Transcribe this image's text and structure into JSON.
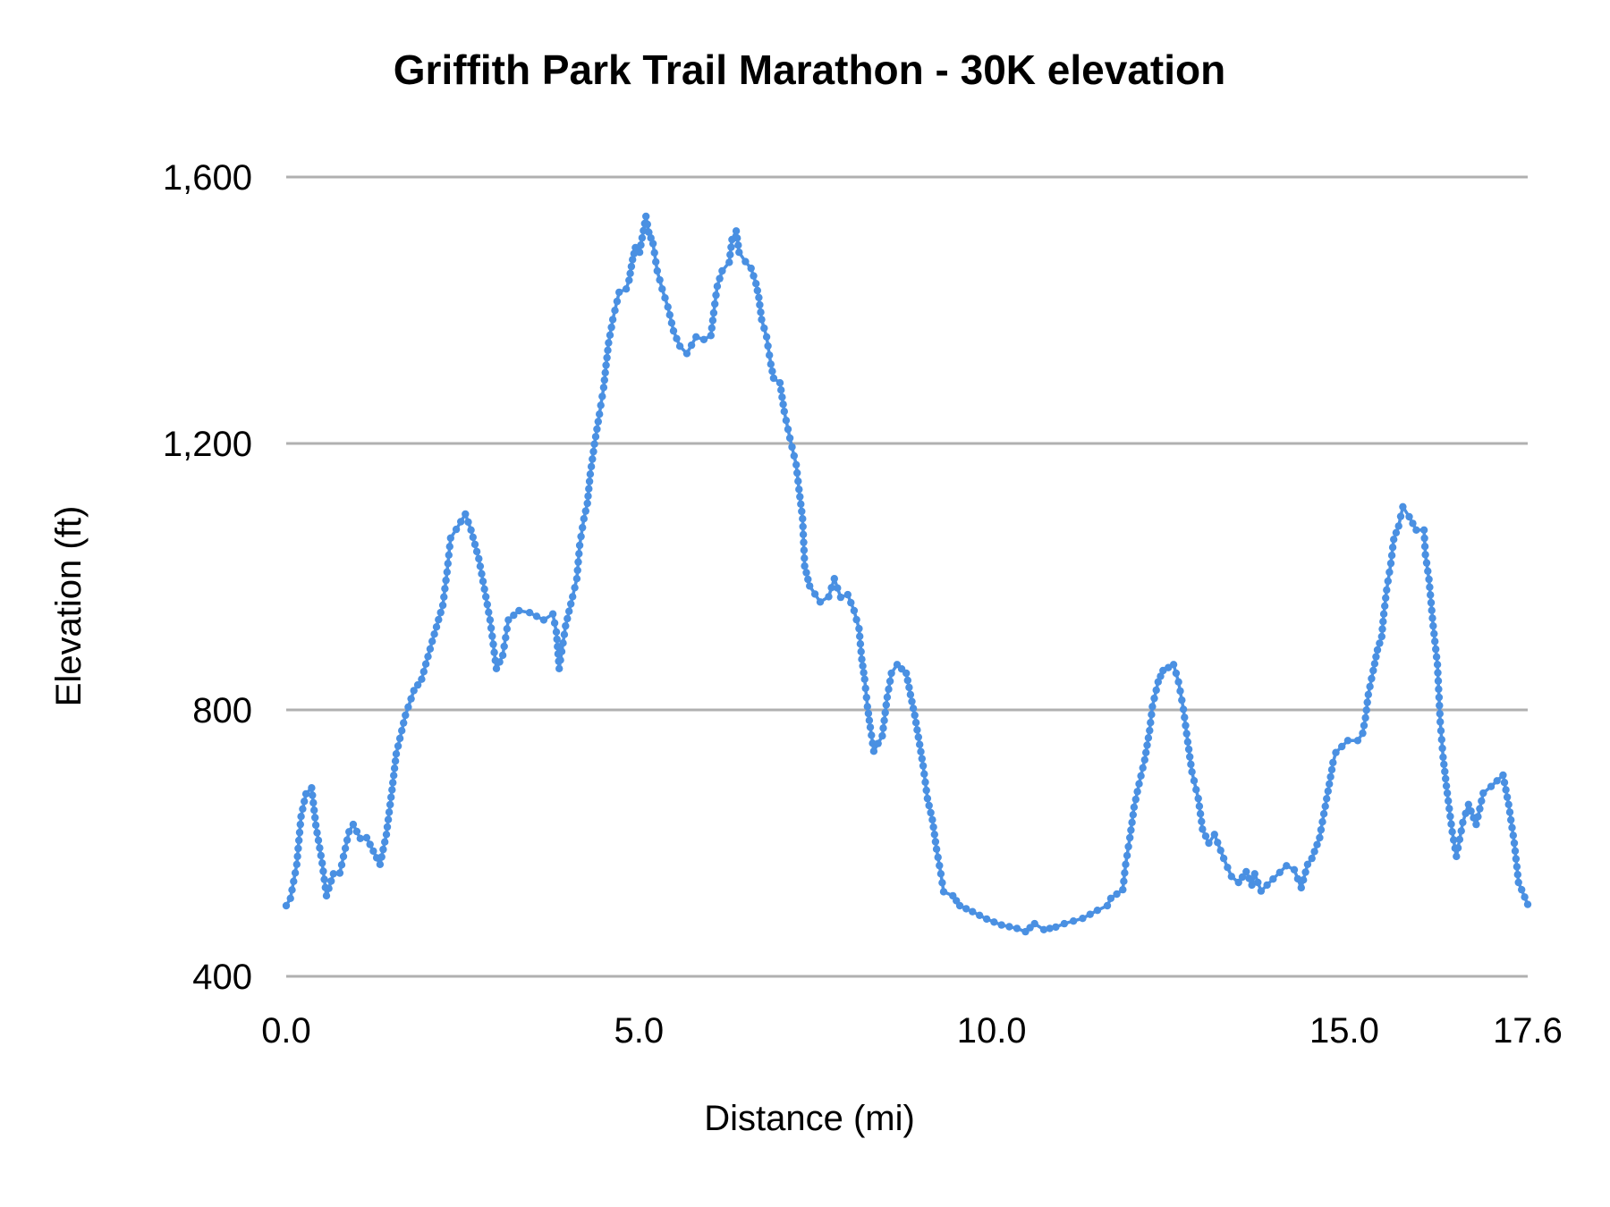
{
  "chart_data": {
    "type": "line",
    "title": "Griffith Park Trail Marathon - 30K elevation",
    "xlabel": "Distance (mi)",
    "ylabel": "Elevation (ft)",
    "xlim": [
      0.0,
      17.6
    ],
    "ylim": [
      400,
      1600
    ],
    "x_ticks": [
      "0.0",
      "5.0",
      "10.0",
      "15.0",
      "17.6"
    ],
    "x_tick_values": [
      0.0,
      5.0,
      10.0,
      15.0,
      17.6
    ],
    "y_ticks": [
      "400",
      "800",
      "1,200",
      "1,600"
    ],
    "y_tick_values": [
      400,
      800,
      1200,
      1600
    ],
    "grid": "horizontal",
    "legend": "none",
    "markers": true,
    "series": [
      {
        "name": "Elevation",
        "color": "#4a90e2",
        "x": [
          0.0,
          0.06,
          0.15,
          0.21,
          0.28,
          0.36,
          0.42,
          0.51,
          0.57,
          0.67,
          0.76,
          0.89,
          0.95,
          1.05,
          1.14,
          1.33,
          1.42,
          1.5,
          1.56,
          1.69,
          1.81,
          1.92,
          2.07,
          2.22,
          2.28,
          2.33,
          2.41,
          2.54,
          2.62,
          2.73,
          2.79,
          2.89,
          2.98,
          3.07,
          3.15,
          3.3,
          3.45,
          3.65,
          3.78,
          3.83,
          3.87,
          3.96,
          4.06,
          4.12,
          4.16,
          4.22,
          4.27,
          4.31,
          4.37,
          4.44,
          4.5,
          4.57,
          4.63,
          4.72,
          4.82,
          4.86,
          4.91,
          4.95,
          5.01,
          5.1,
          5.14,
          5.2,
          5.26,
          5.33,
          5.41,
          5.49,
          5.58,
          5.68,
          5.81,
          5.92,
          6.02,
          6.06,
          6.11,
          6.18,
          6.28,
          6.32,
          6.38,
          6.42,
          6.51,
          6.59,
          6.66,
          6.7,
          6.74,
          6.81,
          6.87,
          6.91,
          7.0,
          7.06,
          7.14,
          7.23,
          7.27,
          7.32,
          7.35,
          7.42,
          7.57,
          7.69,
          7.77,
          7.86,
          7.96,
          8.05,
          8.12,
          8.16,
          8.2,
          8.24,
          8.28,
          8.33,
          8.45,
          8.52,
          8.58,
          8.66,
          8.79,
          8.85,
          8.91,
          8.98,
          9.03,
          9.09,
          9.16,
          9.22,
          9.28,
          9.32,
          9.45,
          9.55,
          9.73,
          9.93,
          10.14,
          10.36,
          10.48,
          10.61,
          10.74,
          10.91,
          11.03,
          11.29,
          11.5,
          11.64,
          11.69,
          11.86,
          11.9,
          11.96,
          12.02,
          12.09,
          12.17,
          12.24,
          12.28,
          12.36,
          12.43,
          12.58,
          12.65,
          12.72,
          12.78,
          12.84,
          12.93,
          12.99,
          13.08,
          13.16,
          13.29,
          13.4,
          13.5,
          13.61,
          13.69,
          13.73,
          13.82,
          13.99,
          14.18,
          14.29,
          14.39,
          14.48,
          14.54,
          14.65,
          14.71,
          14.77,
          14.84,
          14.88,
          15.05,
          15.19,
          15.26,
          15.3,
          15.34,
          15.41,
          15.47,
          15.53,
          15.56,
          15.6,
          15.66,
          15.7,
          15.77,
          15.83,
          15.92,
          16.02,
          16.13,
          16.15,
          16.2,
          16.26,
          16.32,
          16.36,
          16.4,
          16.46,
          16.53,
          16.59,
          16.68,
          16.76,
          16.87,
          16.97,
          17.08,
          17.25,
          17.33,
          17.41,
          17.47,
          17.6
        ],
        "values": [
          506,
          517,
          568,
          640,
          674,
          683,
          627,
          570,
          521,
          554,
          555,
          617,
          628,
          607,
          608,
          568,
          613,
          680,
          734,
          792,
          829,
          846,
          903,
          957,
          1007,
          1058,
          1071,
          1094,
          1070,
          1027,
          993,
          935,
          862,
          882,
          935,
          949,
          946,
          935,
          944,
          917,
          862,
          926,
          970,
          997,
          1047,
          1087,
          1110,
          1154,
          1199,
          1244,
          1284,
          1351,
          1386,
          1427,
          1432,
          1445,
          1476,
          1494,
          1487,
          1541,
          1517,
          1500,
          1459,
          1432,
          1405,
          1369,
          1346,
          1335,
          1360,
          1356,
          1362,
          1396,
          1436,
          1459,
          1472,
          1506,
          1519,
          1487,
          1473,
          1463,
          1440,
          1419,
          1386,
          1360,
          1319,
          1298,
          1291,
          1248,
          1208,
          1168,
          1131,
          1087,
          1016,
          986,
          962,
          970,
          997,
          969,
          973,
          949,
          922,
          876,
          846,
          805,
          774,
          738,
          761,
          819,
          855,
          868,
          855,
          823,
          792,
          748,
          716,
          667,
          635,
          591,
          554,
          527,
          521,
          506,
          497,
          486,
          477,
          472,
          467,
          479,
          470,
          474,
          479,
          487,
          499,
          506,
          517,
          530,
          568,
          608,
          654,
          689,
          725,
          769,
          805,
          842,
          859,
          868,
          842,
          801,
          752,
          707,
          667,
          621,
          600,
          613,
          577,
          550,
          541,
          557,
          537,
          554,
          528,
          546,
          566,
          560,
          533,
          568,
          577,
          608,
          644,
          678,
          721,
          736,
          754,
          754,
          765,
          788,
          823,
          859,
          890,
          910,
          944,
          980,
          1020,
          1056,
          1076,
          1105,
          1090,
          1070,
          1070,
          1033,
          996,
          926,
          868,
          782,
          729,
          675,
          617,
          580,
          631,
          658,
          628,
          675,
          685,
          702,
          658,
          600,
          541,
          508
        ]
      }
    ]
  }
}
